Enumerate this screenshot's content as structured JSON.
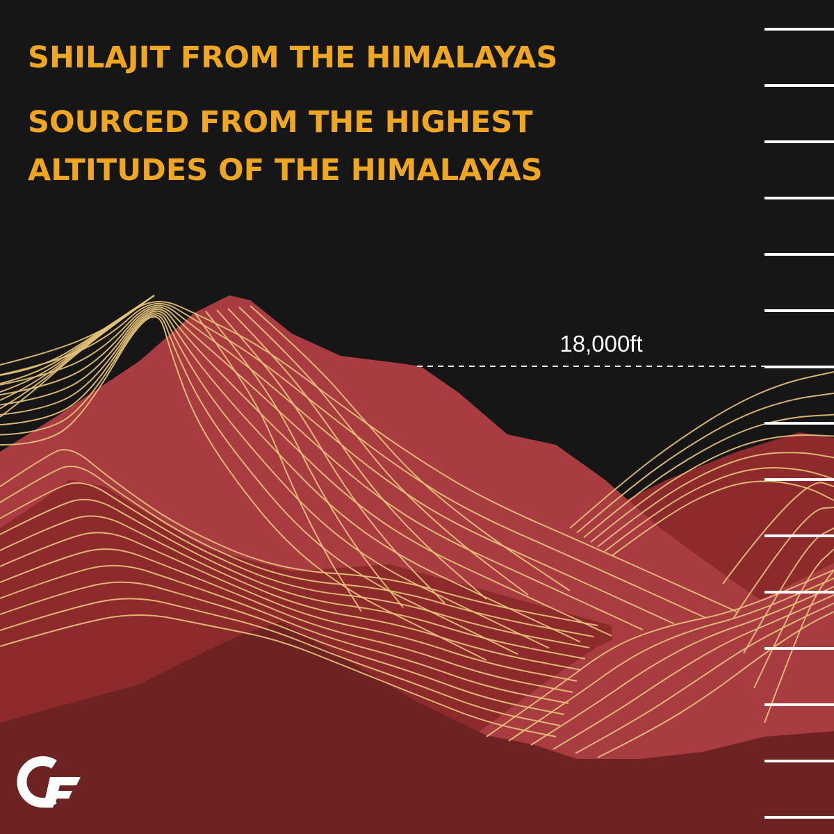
{
  "headline": "SHILAJIT FROM THE HIMALAYAS",
  "subheadline": {
    "lines": [
      "SOURCED FROM THE HIGHEST",
      "ALTITUDES OF THE HIMALAYAS"
    ]
  },
  "altitude_marker": {
    "label": "18,000ft"
  }
}
